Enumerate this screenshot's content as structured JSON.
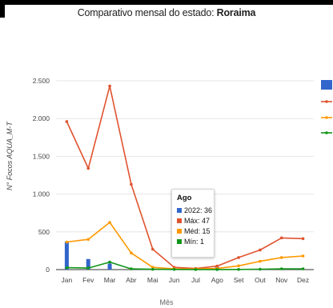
{
  "title_prefix": "Comparativo mensal do estado: ",
  "title_state": "Roraima",
  "colors": {
    "bar": "#3366cc",
    "max": "#e0532f",
    "avg": "#ff9900",
    "min": "#109618",
    "grid": "#e6e6e6",
    "axis": "#333333"
  },
  "chart_data": {
    "type": "bar",
    "categories": [
      "Jan",
      "Fev",
      "Mar",
      "Abr",
      "Mai",
      "Jun",
      "Jul",
      "Ago",
      "Set",
      "Out",
      "Nov",
      "Dez"
    ],
    "xlabel": "Mês",
    "ylabel": "N° Focos AQUA_M-T",
    "ylim": [
      0,
      2500
    ],
    "yticks": [
      0,
      500,
      1000,
      1500,
      2000,
      2500
    ],
    "ytick_labels": [
      "0",
      "500",
      "1.000",
      "1.500",
      "2.000",
      "2.500"
    ],
    "legend_position": "right",
    "grid": true,
    "series": [
      {
        "key": "y2022",
        "type": "bar",
        "color": "#3366cc",
        "values": [
          370,
          140,
          80,
          0,
          0,
          0,
          0,
          36,
          0,
          0,
          0,
          0
        ]
      },
      {
        "key": "max",
        "type": "line",
        "color": "#e0532f",
        "values": [
          1960,
          1340,
          2430,
          1130,
          270,
          30,
          15,
          47,
          160,
          260,
          420,
          410
        ]
      },
      {
        "key": "avg",
        "type": "line",
        "color": "#ff9900",
        "values": [
          365,
          400,
          625,
          220,
          30,
          10,
          8,
          15,
          50,
          110,
          160,
          180
        ]
      },
      {
        "key": "min",
        "type": "line",
        "color": "#109618",
        "values": [
          25,
          20,
          100,
          10,
          4,
          2,
          1,
          1,
          2,
          5,
          10,
          10
        ]
      }
    ]
  },
  "tooltip": {
    "title": "Ago",
    "rows": [
      {
        "label": "2022: 36",
        "color": "#3366cc"
      },
      {
        "label": "Máx: 47",
        "color": "#e0532f"
      },
      {
        "label": "Méd: 15",
        "color": "#ff9900"
      },
      {
        "label": "Mín: 1",
        "color": "#109618"
      }
    ]
  }
}
